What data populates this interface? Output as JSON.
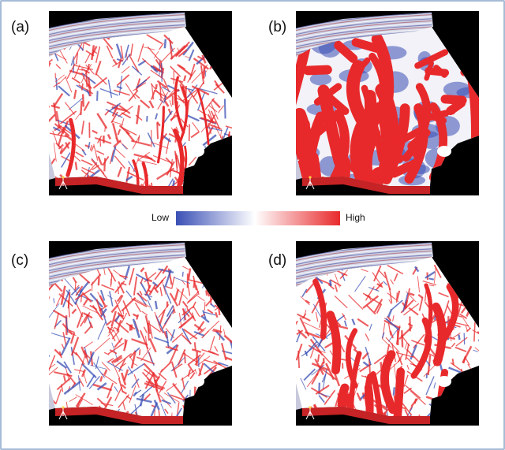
{
  "panels": [
    {
      "label": "(a)"
    },
    {
      "label": "(b)"
    },
    {
      "label": "(c)"
    },
    {
      "label": "(d)"
    }
  ],
  "legend": {
    "low_label": "Low",
    "high_label": "High",
    "colors": [
      "#3a4fb5",
      "#ffffff",
      "#e8292b"
    ]
  },
  "colors": {
    "background": "#000000",
    "high": "#e8292b",
    "low": "#3a4fb5",
    "frame": "#a7bcd6"
  }
}
